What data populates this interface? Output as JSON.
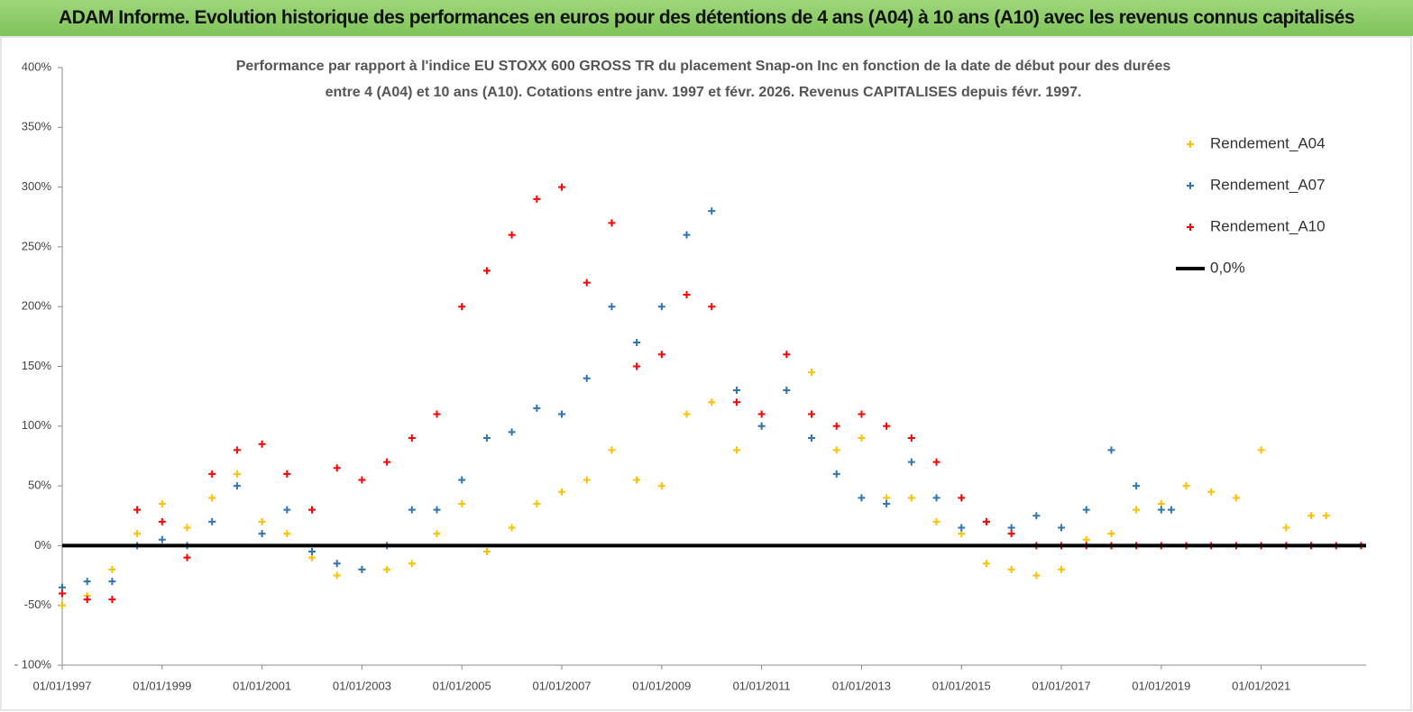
{
  "header": {
    "title": "ADAM Informe. Evolution historique des performances en euros pour des détentions de 4 ans (A04) à 10 ans (A10) avec les revenus connus capitalisés"
  },
  "chart_data": {
    "type": "scatter",
    "subtitle": [
      "Performance par rapport à l'indice EU STOXX 600 GROSS TR  du placement Snap-on Inc en fonction de la date de début pour des durées",
      "entre 4 (A04) et 10 ans (A10). Cotations entre janv. 1997 et févr. 2026. Revenus CAPITALISES depuis févr. 1997."
    ],
    "xlim": [
      1997,
      2023.1
    ],
    "xticks": [
      {
        "value": 1997,
        "label": "01/01/1997"
      },
      {
        "value": 1999,
        "label": "01/01/1999"
      },
      {
        "value": 2001,
        "label": "01/01/2001"
      },
      {
        "value": 2003,
        "label": "01/01/2003"
      },
      {
        "value": 2005,
        "label": "01/01/2005"
      },
      {
        "value": 2007,
        "label": "01/01/2007"
      },
      {
        "value": 2009,
        "label": "01/01/2009"
      },
      {
        "value": 2011,
        "label": "01/01/2011"
      },
      {
        "value": 2013,
        "label": "01/01/2013"
      },
      {
        "value": 2015,
        "label": "01/01/2015"
      },
      {
        "value": 2017,
        "label": "01/01/2017"
      },
      {
        "value": 2019,
        "label": "01/01/2019"
      },
      {
        "value": 2021,
        "label": "01/01/2021"
      }
    ],
    "ylim": [
      -100,
      400
    ],
    "yticks": [
      {
        "value": -100,
        "label": "- 100%"
      },
      {
        "value": -50,
        "label": "-50%"
      },
      {
        "value": 0,
        "label": "0%"
      },
      {
        "value": 50,
        "label": "50%"
      },
      {
        "value": 100,
        "label": "100%"
      },
      {
        "value": 150,
        "label": "150%"
      },
      {
        "value": 200,
        "label": "200%"
      },
      {
        "value": 250,
        "label": "250%"
      },
      {
        "value": 300,
        "label": "300%"
      },
      {
        "value": 350,
        "label": "350%"
      },
      {
        "value": 400,
        "label": "400%"
      }
    ],
    "legend": "top-right",
    "series": [
      {
        "name": "Rendement_A04",
        "color": "#ffc000",
        "mode": "markers",
        "x": [
          1997.0,
          1997.5,
          1998.0,
          1998.5,
          1999.0,
          1999.5,
          2000.0,
          2000.5,
          2001.0,
          2001.5,
          2002.0,
          2002.5,
          2003.0,
          2003.5,
          2004.0,
          2004.5,
          2005.0,
          2005.5,
          2006.0,
          2006.5,
          2007.0,
          2007.5,
          2008.0,
          2008.5,
          2009.0,
          2009.5,
          2010.0,
          2010.5,
          2011.0,
          2011.5,
          2012.0,
          2012.5,
          2013.0,
          2013.5,
          2014.0,
          2014.5,
          2015.0,
          2015.5,
          2016.0,
          2016.5,
          2017.0,
          2017.5,
          2018.0,
          2018.5,
          2019.0,
          2019.5,
          2020.0,
          2020.5,
          2021.0,
          2021.5,
          2022.0,
          2022.3
        ],
        "values": [
          -50,
          -42,
          -20,
          10,
          35,
          15,
          40,
          60,
          20,
          10,
          -10,
          -25,
          -20,
          -20,
          -15,
          10,
          35,
          -5,
          15,
          35,
          45,
          55,
          80,
          55,
          50,
          110,
          120,
          80,
          100,
          130,
          145,
          80,
          90,
          40,
          40,
          20,
          10,
          -15,
          -20,
          -25,
          -20,
          5,
          10,
          30,
          35,
          50,
          45,
          40,
          80,
          15,
          25,
          25
        ]
      },
      {
        "name": "Rendement_A07",
        "color": "#2e75b6",
        "mode": "markers",
        "x": [
          1997.0,
          1997.5,
          1998.0,
          1998.5,
          1999.0,
          1999.5,
          2000.0,
          2000.5,
          2001.0,
          2001.5,
          2002.0,
          2002.5,
          2003.0,
          2003.5,
          2004.0,
          2004.5,
          2005.0,
          2005.5,
          2006.0,
          2006.5,
          2007.0,
          2007.5,
          2008.0,
          2008.5,
          2009.0,
          2009.5,
          2010.0,
          2010.5,
          2011.0,
          2011.5,
          2012.0,
          2012.5,
          2013.0,
          2013.5,
          2014.0,
          2014.5,
          2015.0,
          2015.5,
          2016.0,
          2016.5,
          2017.0,
          2017.5,
          2018.0,
          2018.5,
          2019.0,
          2019.2
        ],
        "values": [
          -35,
          -30,
          -30,
          0,
          5,
          0,
          20,
          50,
          10,
          30,
          -5,
          -15,
          -20,
          0,
          30,
          30,
          55,
          90,
          95,
          115,
          110,
          140,
          200,
          170,
          200,
          260,
          280,
          130,
          100,
          130,
          90,
          60,
          40,
          35,
          70,
          40,
          15,
          20,
          15,
          25,
          15,
          30,
          80,
          50,
          30,
          30
        ]
      },
      {
        "name": "Rendement_A10",
        "color": "#ff0000",
        "mode": "markers",
        "x": [
          1997.0,
          1997.5,
          1998.0,
          1998.5,
          1999.0,
          1999.5,
          2000.0,
          2000.5,
          2001.0,
          2001.5,
          2002.0,
          2002.5,
          2003.0,
          2003.5,
          2004.0,
          2004.5,
          2005.0,
          2005.5,
          2006.0,
          2006.5,
          2007.0,
          2007.5,
          2008.0,
          2008.5,
          2009.0,
          2009.5,
          2010.0,
          2010.5,
          2011.0,
          2011.5,
          2012.0,
          2012.5,
          2013.0,
          2013.5,
          2014.0,
          2014.5,
          2015.0,
          2015.5,
          2016.0,
          2016.5,
          2017.0,
          2017.5,
          2018.0,
          2018.5,
          2019.0,
          2019.5,
          2020.0,
          2020.5,
          2021.0,
          2021.5,
          2022.0,
          2022.5,
          2023.0
        ],
        "values": [
          -40,
          -45,
          -45,
          30,
          20,
          -10,
          60,
          80,
          85,
          60,
          30,
          65,
          55,
          70,
          90,
          110,
          200,
          230,
          260,
          290,
          300,
          220,
          270,
          150,
          160,
          210,
          200,
          120,
          110,
          160,
          110,
          100,
          110,
          100,
          90,
          70,
          40,
          20,
          10,
          0,
          0,
          0,
          0,
          0,
          0,
          0,
          0,
          0,
          0,
          0,
          0,
          0,
          0
        ]
      },
      {
        "name": "0,0%",
        "color": "#000000",
        "mode": "line",
        "x": [
          1997,
          2023.1
        ],
        "values": [
          0,
          0
        ]
      }
    ]
  }
}
